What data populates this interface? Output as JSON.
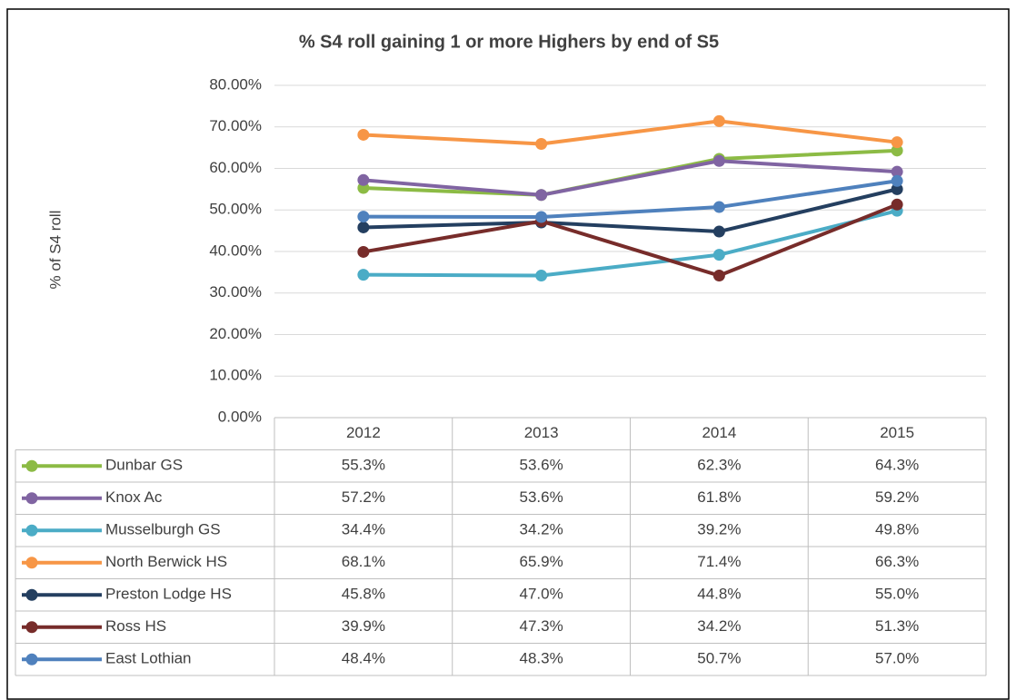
{
  "chart_data": {
    "type": "line",
    "title": "% S4 roll gaining 1 or more Highers by end of S5",
    "y_label": "% of S4 roll",
    "categories": [
      "2012",
      "2013",
      "2014",
      "2015"
    ],
    "ylim": [
      0,
      80
    ],
    "yticks": [
      {
        "value": 0,
        "label": "0.00%"
      },
      {
        "value": 10,
        "label": "10.00%"
      },
      {
        "value": 20,
        "label": "20.00%"
      },
      {
        "value": 30,
        "label": "30.00%"
      },
      {
        "value": 40,
        "label": "40.00%"
      },
      {
        "value": 50,
        "label": "50.00%"
      },
      {
        "value": 60,
        "label": "60.00%"
      },
      {
        "value": 70,
        "label": "70.00%"
      },
      {
        "value": 80,
        "label": "80.00%"
      }
    ],
    "grid": true,
    "series": [
      {
        "name": "Dunbar GS",
        "color": "#8cbb45",
        "values": [
          55.3,
          53.6,
          62.3,
          64.3
        ],
        "value_labels": [
          "55.3%",
          "53.6%",
          "62.3%",
          "64.3%"
        ]
      },
      {
        "name": "Knox Ac",
        "color": "#8064a2",
        "values": [
          57.2,
          53.6,
          61.8,
          59.2
        ],
        "value_labels": [
          "57.2%",
          "53.6%",
          "61.8%",
          "59.2%"
        ]
      },
      {
        "name": "Musselburgh GS",
        "color": "#4bacc6",
        "values": [
          34.4,
          34.2,
          39.2,
          49.8
        ],
        "value_labels": [
          "34.4%",
          "34.2%",
          "39.2%",
          "49.8%"
        ]
      },
      {
        "name": "North Berwick HS",
        "color": "#f79646",
        "values": [
          68.1,
          65.9,
          71.4,
          66.3
        ],
        "value_labels": [
          "68.1%",
          "65.9%",
          "71.4%",
          "66.3%"
        ]
      },
      {
        "name": "Preston Lodge HS",
        "color": "#243f60",
        "values": [
          45.8,
          47.0,
          44.8,
          55.0
        ],
        "value_labels": [
          "45.8%",
          "47.0%",
          "44.8%",
          "55.0%"
        ]
      },
      {
        "name": "Ross HS",
        "color": "#772c2a",
        "values": [
          39.9,
          47.3,
          34.2,
          51.3
        ],
        "value_labels": [
          "39.9%",
          "47.3%",
          "34.2%",
          "51.3%"
        ]
      },
      {
        "name": "East Lothian",
        "color": "#4f81bd",
        "values": [
          48.4,
          48.3,
          50.7,
          57.0
        ],
        "value_labels": [
          "48.4%",
          "48.3%",
          "50.7%",
          "57.0%"
        ]
      }
    ]
  }
}
